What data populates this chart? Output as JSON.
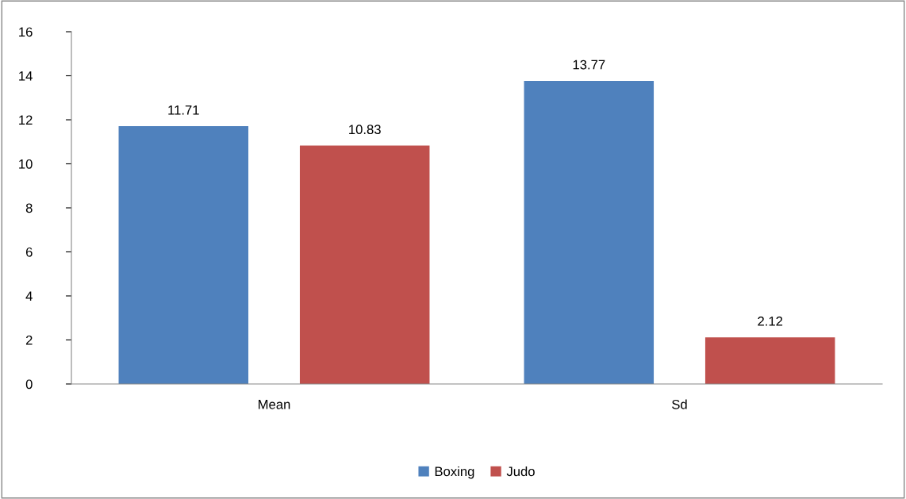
{
  "chart_data": {
    "type": "bar",
    "categories": [
      "Mean",
      "Sd"
    ],
    "series": [
      {
        "name": "Boxing",
        "color": "#4f81bd",
        "values": [
          11.71,
          13.77
        ]
      },
      {
        "name": "Judo",
        "color": "#c0504d",
        "values": [
          10.83,
          2.12
        ]
      }
    ],
    "ylim": [
      0,
      16
    ],
    "yticks": [
      0,
      2,
      4,
      6,
      8,
      10,
      12,
      14,
      16
    ],
    "grid": false,
    "legend": "bottom",
    "data_labels": true
  }
}
